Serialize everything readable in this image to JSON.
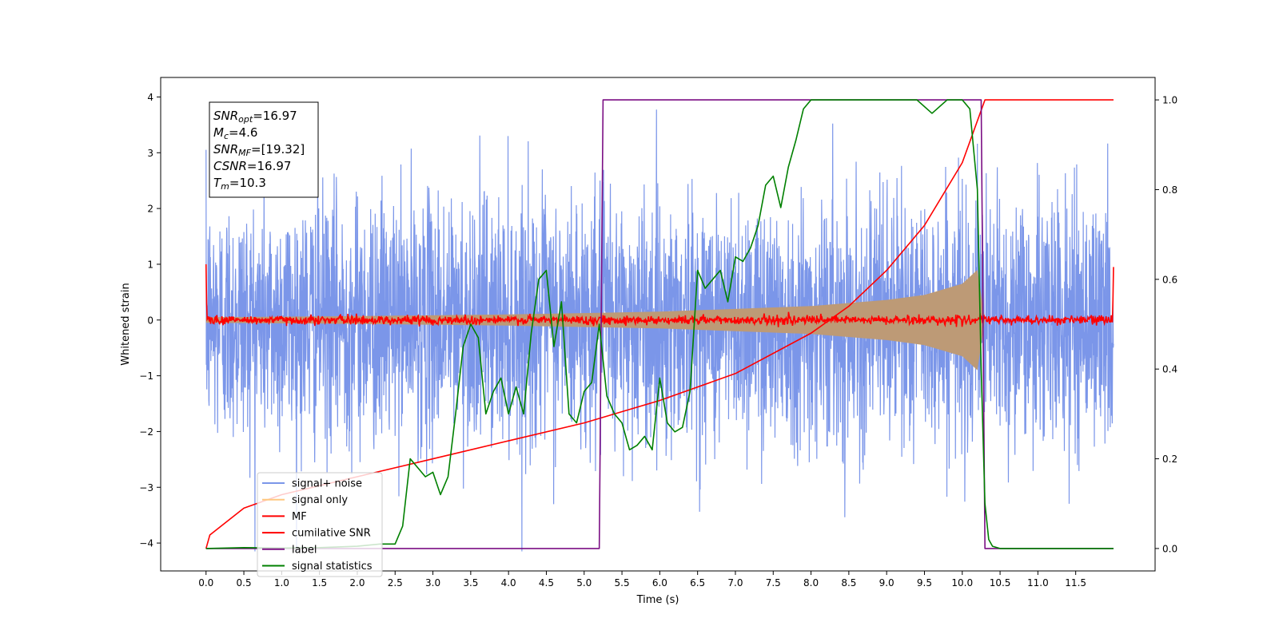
{
  "chart_data": {
    "type": "line",
    "title": "",
    "xlabel": "Time (s)",
    "ylabel": "Whitened strain",
    "y2label": "",
    "xlim": [
      -0.6,
      12.55
    ],
    "ylim": [
      -4.5,
      4.35
    ],
    "y2lim": [
      -0.05,
      1.05
    ],
    "x_ticks": [
      "0.0",
      "0.5",
      "1.0",
      "1.5",
      "2.0",
      "2.5",
      "3.0",
      "3.5",
      "4.0",
      "4.5",
      "5.0",
      "5.5",
      "6.0",
      "6.5",
      "7.0",
      "7.5",
      "8.0",
      "8.5",
      "9.0",
      "9.5",
      "10.0",
      "10.5",
      "11.0",
      "11.5"
    ],
    "y_ticks": [
      "4",
      "3",
      "2",
      "1",
      "0",
      "−1",
      "−2",
      "−3",
      "−4"
    ],
    "y2_ticks": [
      "1.0",
      "0.8",
      "0.6",
      "0.4",
      "0.2",
      "0.0"
    ],
    "grid": false,
    "legend_position": "lower-left",
    "series": [
      {
        "name": "signal+ noise",
        "color": "#7b96e9",
        "axis": "left",
        "description_x_range": [
          0.0,
          12.0
        ],
        "amplitude_std": 1.1
      },
      {
        "name": "signal only",
        "color": "#ffc880",
        "axis": "left",
        "envelope": {
          "x": [
            0.0,
            2.0,
            4.0,
            6.0,
            8.0,
            9.0,
            9.5,
            10.0,
            10.2,
            10.3
          ],
          "amp": [
            0.05,
            0.07,
            0.1,
            0.15,
            0.25,
            0.36,
            0.45,
            0.65,
            0.9,
            0.0
          ]
        }
      },
      {
        "name": "MF",
        "color": "#ff0000",
        "axis": "left",
        "x_range": [
          0.0,
          12.0
        ],
        "amplitude_std": 0.04
      },
      {
        "name": "cumilative SNR",
        "color": "#ff0000",
        "axis": "right",
        "x": [
          0.0,
          0.05,
          0.5,
          1.0,
          2.0,
          3.0,
          4.0,
          5.0,
          6.0,
          7.0,
          8.0,
          8.5,
          9.0,
          9.5,
          10.0,
          10.3,
          12.0
        ],
        "y": [
          0.0,
          0.03,
          0.09,
          0.12,
          0.16,
          0.2,
          0.24,
          0.28,
          0.33,
          0.39,
          0.48,
          0.54,
          0.62,
          0.72,
          0.86,
          1.0,
          1.0
        ]
      },
      {
        "name": "label",
        "color": "#7b0f84",
        "axis": "right",
        "x": [
          0.0,
          5.2,
          5.25,
          10.25,
          10.3,
          12.0
        ],
        "y": [
          0.0,
          0.0,
          1.0,
          1.0,
          0.0,
          0.0
        ]
      },
      {
        "name": "signal statistics",
        "color": "#008000",
        "axis": "right",
        "x": [
          0.0,
          0.5,
          1.0,
          1.5,
          2.0,
          2.3,
          2.5,
          2.6,
          2.7,
          2.8,
          2.9,
          3.0,
          3.1,
          3.2,
          3.3,
          3.4,
          3.5,
          3.6,
          3.7,
          3.8,
          3.9,
          4.0,
          4.1,
          4.2,
          4.3,
          4.4,
          4.5,
          4.6,
          4.7,
          4.8,
          4.9,
          5.0,
          5.1,
          5.2,
          5.3,
          5.4,
          5.5,
          5.6,
          5.7,
          5.8,
          5.9,
          6.0,
          6.1,
          6.2,
          6.3,
          6.4,
          6.5,
          6.6,
          6.7,
          6.8,
          6.9,
          7.0,
          7.1,
          7.2,
          7.3,
          7.4,
          7.5,
          7.6,
          7.7,
          7.8,
          7.9,
          8.0,
          8.2,
          8.4,
          8.6,
          8.8,
          9.0,
          9.2,
          9.4,
          9.6,
          9.8,
          10.0,
          10.1,
          10.2,
          10.25,
          10.3,
          10.35,
          10.4,
          10.5,
          11.0,
          12.0
        ],
        "y": [
          0.0,
          0.002,
          0.001,
          0.002,
          0.005,
          0.01,
          0.01,
          0.05,
          0.2,
          0.18,
          0.16,
          0.17,
          0.12,
          0.16,
          0.3,
          0.45,
          0.5,
          0.47,
          0.3,
          0.35,
          0.38,
          0.3,
          0.36,
          0.3,
          0.48,
          0.6,
          0.62,
          0.45,
          0.55,
          0.3,
          0.28,
          0.35,
          0.37,
          0.5,
          0.34,
          0.3,
          0.28,
          0.22,
          0.23,
          0.25,
          0.22,
          0.38,
          0.28,
          0.26,
          0.27,
          0.35,
          0.62,
          0.58,
          0.6,
          0.62,
          0.55,
          0.65,
          0.64,
          0.67,
          0.72,
          0.81,
          0.83,
          0.76,
          0.85,
          0.91,
          0.98,
          1.0,
          1.0,
          1.0,
          1.0,
          1.0,
          1.0,
          1.0,
          1.0,
          0.97,
          1.0,
          1.0,
          0.98,
          0.8,
          0.4,
          0.1,
          0.02,
          0.005,
          0.0,
          0.0,
          0.0
        ]
      }
    ],
    "annotation": {
      "lines": [
        {
          "sym": "SNR",
          "sub": "opt",
          "rest": "=16.97"
        },
        {
          "sym": "M",
          "sub": "c",
          "rest": "=4.6"
        },
        {
          "sym": "SNR",
          "sub": "MF",
          "rest": "=[19.32]"
        },
        {
          "sym": "CSNR",
          "sub": "",
          "rest": "=16.97"
        },
        {
          "sym": "T",
          "sub": "m",
          "rest": "=10.3"
        }
      ]
    }
  }
}
